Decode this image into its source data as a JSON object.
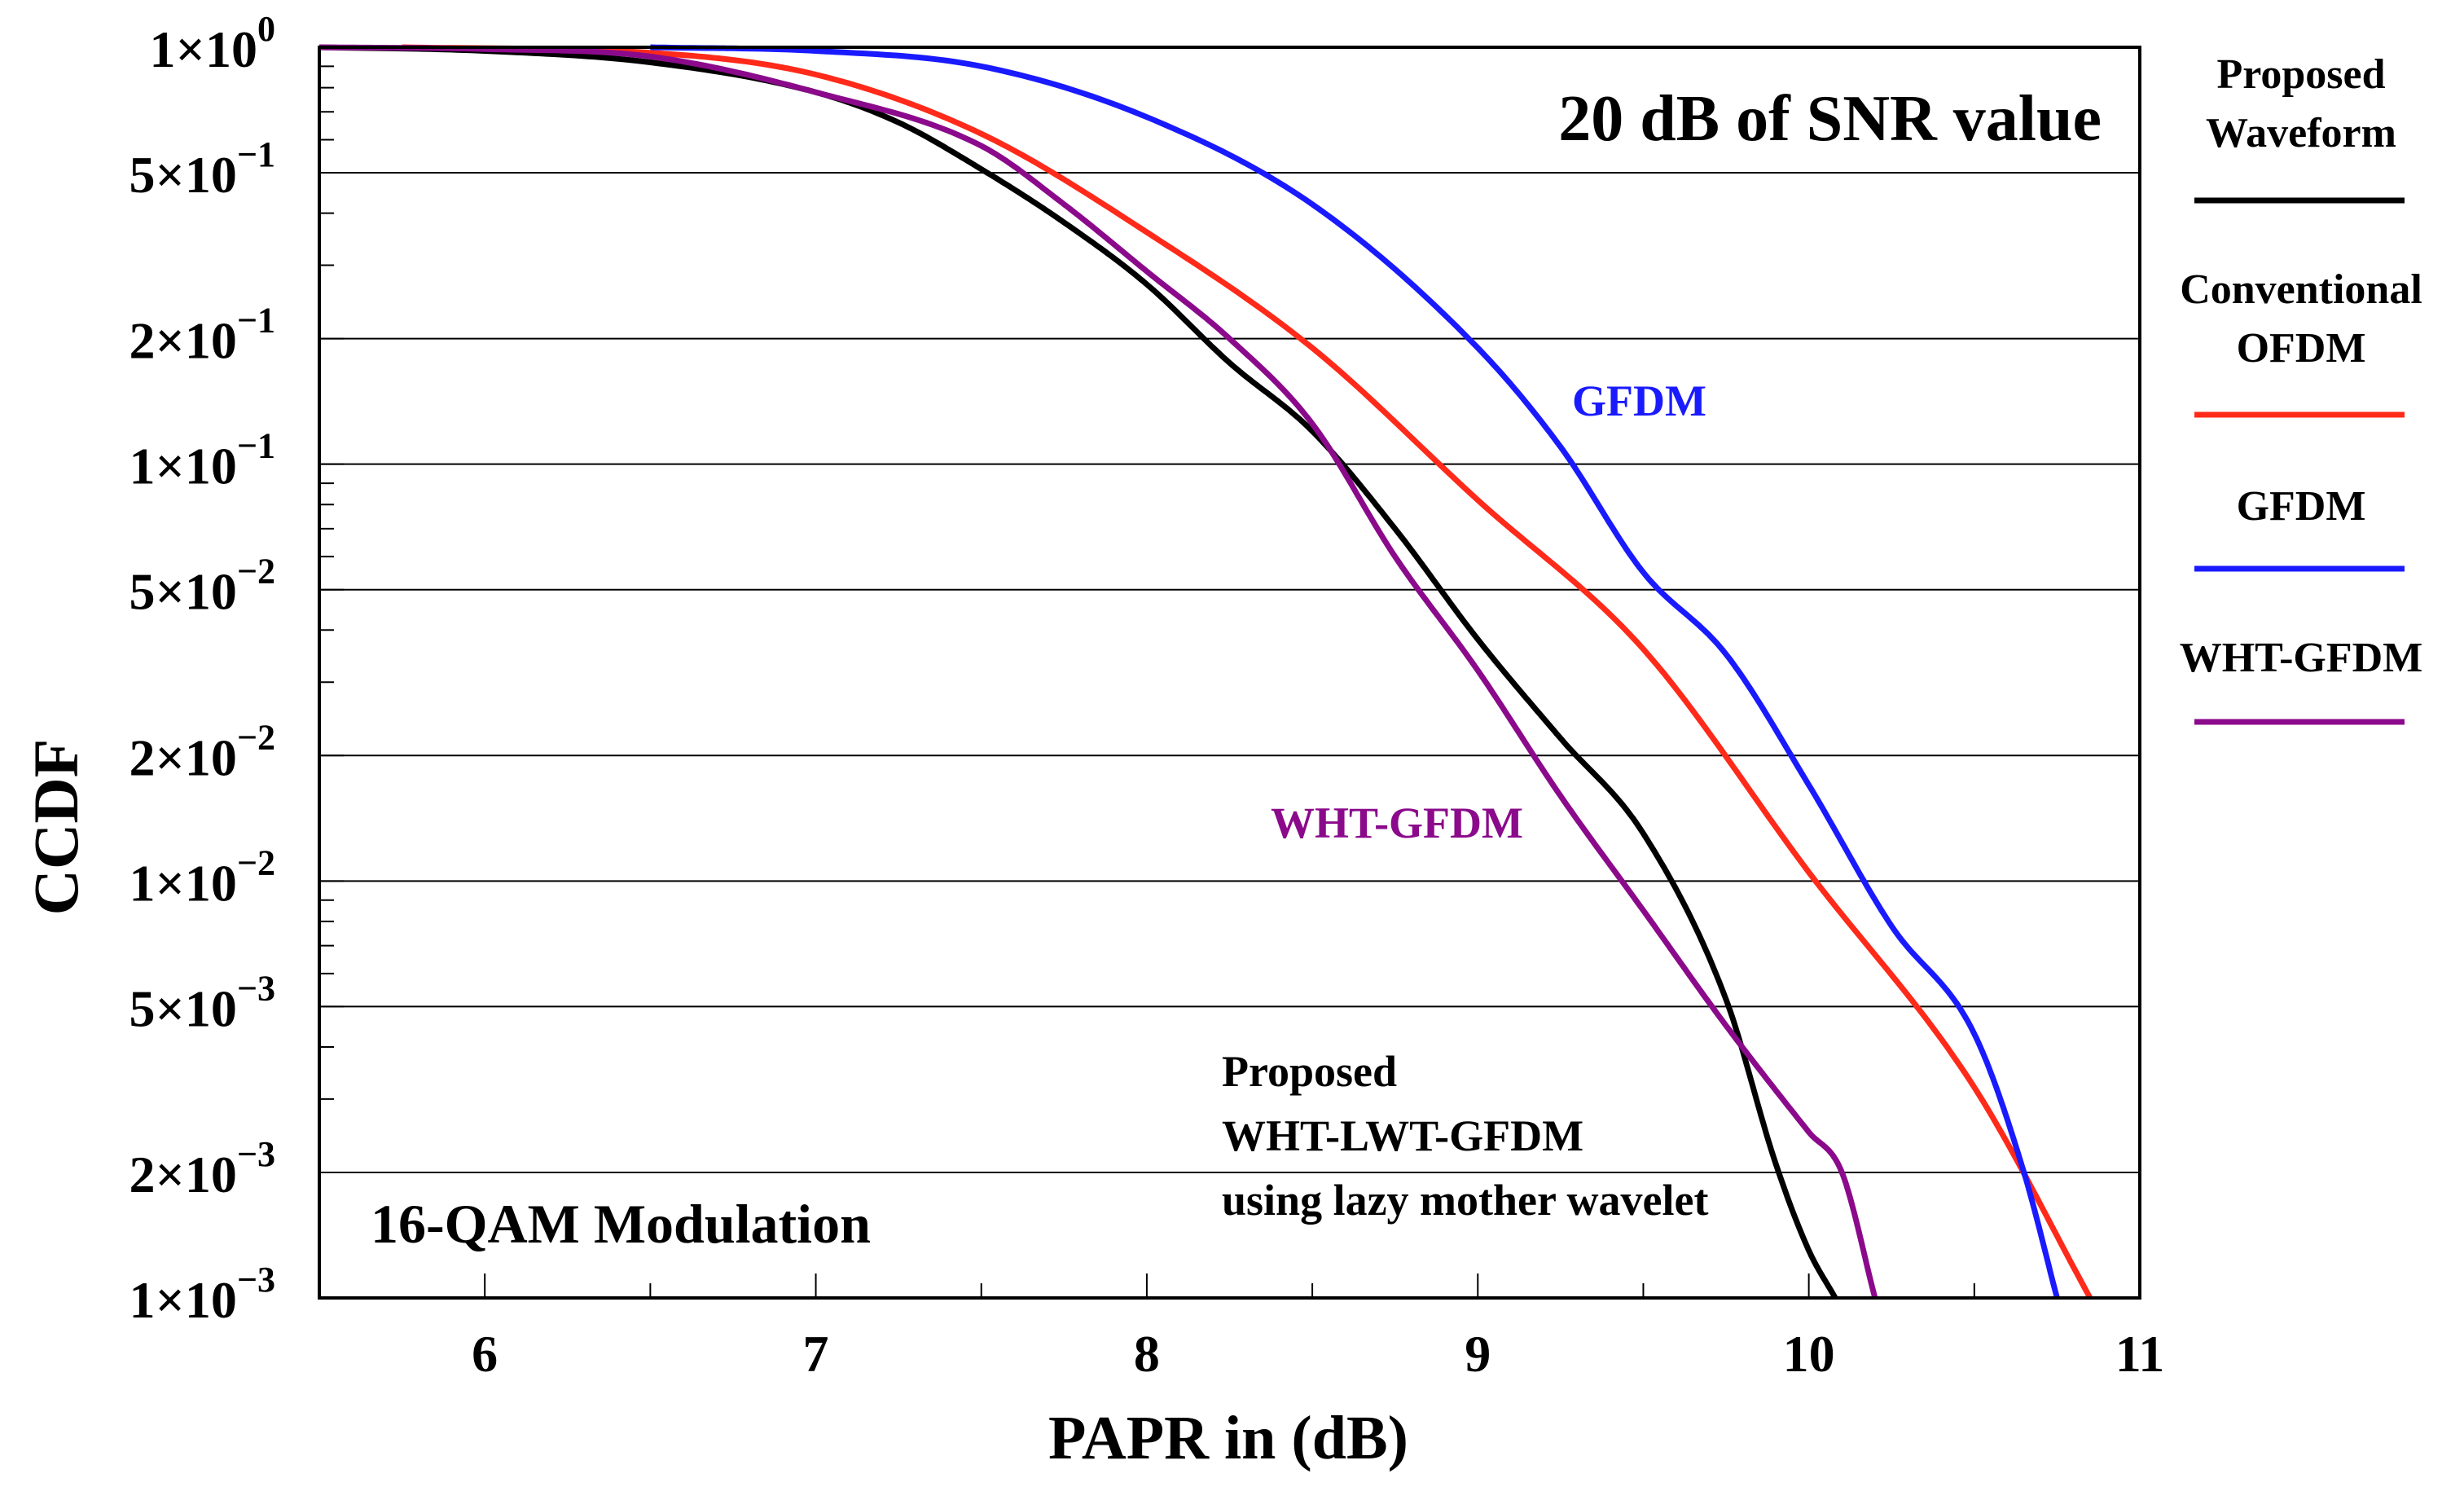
{
  "chart_data": {
    "type": "line",
    "title": "20 dB of SNR value",
    "xlabel": "PAPR in (dB)",
    "ylabel": "CCDF",
    "xlim": [
      5.5,
      11
    ],
    "ylim": [
      0.001,
      1
    ],
    "yscale": "log",
    "grid": true,
    "legend_position": "right-outside",
    "x_ticks": [
      {
        "value": 6,
        "label": "6"
      },
      {
        "value": 7,
        "label": "7"
      },
      {
        "value": 8,
        "label": "8"
      },
      {
        "value": 9,
        "label": "9"
      },
      {
        "value": 10,
        "label": "10"
      },
      {
        "value": 11,
        "label": "11"
      }
    ],
    "y_ticks": [
      {
        "value": 1,
        "mant": "1×10",
        "exp": "0"
      },
      {
        "value": 0.5,
        "mant": "5×10",
        "exp": "−1"
      },
      {
        "value": 0.2,
        "mant": "2×10",
        "exp": "−1"
      },
      {
        "value": 0.1,
        "mant": "1×10",
        "exp": "−1"
      },
      {
        "value": 0.05,
        "mant": "5×10",
        "exp": "−2"
      },
      {
        "value": 0.02,
        "mant": "2×10",
        "exp": "−2"
      },
      {
        "value": 0.01,
        "mant": "1×10",
        "exp": "−2"
      },
      {
        "value": 0.005,
        "mant": "5×10",
        "exp": "−3"
      },
      {
        "value": 0.002,
        "mant": "2×10",
        "exp": "−3"
      },
      {
        "value": 0.001,
        "mant": "1×10",
        "exp": "−3"
      }
    ],
    "series": [
      {
        "name": "Proposed Waveform",
        "legend_lines": [
          "Proposed",
          "Waveform"
        ],
        "color": "#000000",
        "points": [
          [
            5.5,
            1.0
          ],
          [
            6.0,
            0.98
          ],
          [
            6.5,
            0.92
          ],
          [
            7.0,
            0.78
          ],
          [
            7.25,
            0.66
          ],
          [
            7.5,
            0.51
          ],
          [
            7.75,
            0.38
          ],
          [
            8.0,
            0.27
          ],
          [
            8.25,
            0.175
          ],
          [
            8.5,
            0.12
          ],
          [
            8.75,
            0.07
          ],
          [
            9.0,
            0.038
          ],
          [
            9.25,
            0.022
          ],
          [
            9.5,
            0.013
          ],
          [
            9.75,
            0.0052
          ],
          [
            9.9,
            0.0021
          ],
          [
            10.0,
            0.0013
          ],
          [
            10.08,
            0.001
          ]
        ]
      },
      {
        "name": "Conventional OFDM",
        "legend_lines": [
          "Conventional",
          "OFDM"
        ],
        "color": "#ff2a1a",
        "points": [
          [
            5.75,
            1.0
          ],
          [
            6.5,
            0.97
          ],
          [
            7.0,
            0.86
          ],
          [
            7.5,
            0.62
          ],
          [
            8.0,
            0.36
          ],
          [
            8.5,
            0.19
          ],
          [
            9.0,
            0.082
          ],
          [
            9.5,
            0.036
          ],
          [
            10.0,
            0.0105
          ],
          [
            10.5,
            0.0032
          ],
          [
            10.85,
            0.001
          ]
        ]
      },
      {
        "name": "GFDM",
        "legend_lines": [
          "GFDM"
        ],
        "color": "#1a1aff",
        "points": [
          [
            6.5,
            1.0
          ],
          [
            7.0,
            0.98
          ],
          [
            7.5,
            0.9
          ],
          [
            8.0,
            0.68
          ],
          [
            8.5,
            0.42
          ],
          [
            9.0,
            0.19
          ],
          [
            9.25,
            0.11
          ],
          [
            9.5,
            0.055
          ],
          [
            9.75,
            0.035
          ],
          [
            10.0,
            0.017
          ],
          [
            10.25,
            0.0078
          ],
          [
            10.5,
            0.0043
          ],
          [
            10.65,
            0.002
          ],
          [
            10.75,
            0.001
          ]
        ]
      },
      {
        "name": "WHT-GFDM",
        "legend_lines": [
          "WHT-GFDM"
        ],
        "color": "#8b0a8b",
        "points": [
          [
            5.5,
            1.0
          ],
          [
            6.0,
            0.99
          ],
          [
            6.5,
            0.95
          ],
          [
            7.0,
            0.78
          ],
          [
            7.5,
            0.58
          ],
          [
            7.75,
            0.42
          ],
          [
            8.0,
            0.29
          ],
          [
            8.25,
            0.2
          ],
          [
            8.5,
            0.125
          ],
          [
            8.75,
            0.06
          ],
          [
            9.0,
            0.032
          ],
          [
            9.25,
            0.016
          ],
          [
            9.5,
            0.0085
          ],
          [
            9.75,
            0.0045
          ],
          [
            10.0,
            0.0025
          ],
          [
            10.1,
            0.002
          ],
          [
            10.2,
            0.001
          ]
        ]
      }
    ],
    "annotations": [
      {
        "text": "GFDM",
        "color": "#1a1aff"
      },
      {
        "text": "WHT-GFDM",
        "color": "#8b0a8b"
      },
      {
        "lines": [
          "Proposed",
          "WHT-LWT-GFDM",
          "using lazy mother wavelet"
        ],
        "color": "#000000"
      },
      {
        "text": "16-QAM Modulation",
        "color": "#000000"
      }
    ]
  }
}
